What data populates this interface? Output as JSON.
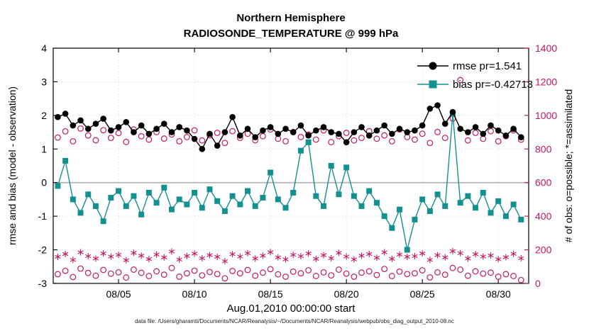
{
  "colors": {
    "background": "#ffffff",
    "frame": "#000000",
    "grid": "#d9d9d9",
    "zero_line": "#b3b3b3",
    "rmse": "#000000",
    "bias": "#149090",
    "obs": "#c41662",
    "caption": "#222222"
  },
  "chart_data": {
    "type": "line",
    "title": "Northern Hemisphere",
    "subtitle": "RADIOSONDE_TEMPERATURE @ 999 hPa",
    "xlabel": "Aug.01,2010 00:00:00 start",
    "ylabel_left": "rmse and bias (model - observation)",
    "ylabel_right": "# of obs: o=possible; *=assimilated",
    "caption": "data file: /Users/gharamti/Documents/NCAR/Reanalysis/~/Documents/NCAR/Reanalysis/webpub/obs_diag_output_2010-08.nc",
    "grid": true,
    "legend_position": "upper-right-inside",
    "ylim_left": [
      -3,
      4
    ],
    "yticks_left": [
      -3,
      -2,
      -1,
      0,
      1,
      2,
      3,
      4
    ],
    "ylim_right": [
      0,
      1400
    ],
    "yticks_right": [
      0,
      200,
      400,
      600,
      800,
      1000,
      1200,
      1400
    ],
    "xlim_days": [
      -0.3,
      31
    ],
    "time_step_days": 0.5,
    "xticks": [
      {
        "day": 4,
        "label": "08/05"
      },
      {
        "day": 9,
        "label": "08/10"
      },
      {
        "day": 14,
        "label": "08/15"
      },
      {
        "day": 19,
        "label": "08/20"
      },
      {
        "day": 24,
        "label": "08/25"
      },
      {
        "day": 29,
        "label": "08/30"
      }
    ],
    "series": [
      {
        "name": "rmse",
        "legend": "rmse pr=1.541",
        "axis": "left",
        "color": "#000000",
        "marker": "filled-circle",
        "line": true,
        "values": [
          1.95,
          2.05,
          1.7,
          1.85,
          1.6,
          1.75,
          1.9,
          1.55,
          1.65,
          1.8,
          1.5,
          1.7,
          1.45,
          1.6,
          1.75,
          1.5,
          1.65,
          1.55,
          1.3,
          1.0,
          1.45,
          1.1,
          1.5,
          1.95,
          1.4,
          1.6,
          1.35,
          1.55,
          1.65,
          1.45,
          1.6,
          1.5,
          1.7,
          1.4,
          1.55,
          1.65,
          1.5,
          1.45,
          1.2,
          1.5,
          1.65,
          1.4,
          1.55,
          1.7,
          1.45,
          1.6,
          1.5,
          1.55,
          1.7,
          2.2,
          2.3,
          1.75,
          2.1,
          1.6,
          1.5,
          1.65,
          1.45,
          1.7,
          1.55,
          1.4,
          1.6,
          1.35
        ]
      },
      {
        "name": "bias",
        "legend": "bias pr=-0.42713",
        "axis": "left",
        "color": "#149090",
        "marker": "filled-square",
        "line": true,
        "values": [
          -0.1,
          0.65,
          -0.5,
          -0.9,
          -0.35,
          -0.7,
          -1.15,
          -0.45,
          -0.25,
          -0.7,
          -0.4,
          -0.95,
          -0.3,
          -0.6,
          -0.15,
          -0.8,
          -0.5,
          -0.65,
          -0.3,
          -0.75,
          -0.2,
          -0.55,
          -0.85,
          -0.4,
          -0.65,
          -0.25,
          -0.7,
          -0.45,
          0.3,
          -0.5,
          -0.75,
          -0.3,
          0.95,
          1.2,
          -0.4,
          -0.7,
          0.5,
          -0.35,
          0.45,
          -0.4,
          -0.7,
          -0.25,
          -0.6,
          -1.0,
          -1.35,
          -0.8,
          -2.0,
          -1.1,
          -0.5,
          -0.85,
          -0.35,
          -0.7,
          2.05,
          -0.6,
          -0.4,
          -0.75,
          -0.3,
          -0.9,
          -0.55,
          -1.0,
          -0.65,
          -1.1
        ]
      },
      {
        "name": "n-possible",
        "axis": "right",
        "color": "#c41662",
        "marker": "open-circle",
        "line": false,
        "values": [
          868,
          905,
          846,
          922,
          881,
          852,
          912,
          866,
          895,
          842,
          916,
          876,
          856,
          901,
          862,
          886,
          846,
          871,
          911,
          851,
          882,
          896,
          836,
          906,
          866,
          891,
          852,
          876,
          916,
          861,
          846,
          901,
          871,
          886,
          856,
          911,
          841,
          876,
          896,
          851,
          866,
          906,
          861,
          881,
          846,
          916,
          871,
          856,
          891,
          836,
          901,
          866,
          981,
          1210,
          851,
          896,
          861,
          906,
          846,
          876,
          911,
          856
        ]
      },
      {
        "name": "n-assimilated",
        "axis": "right",
        "color": "#c41662",
        "marker": "asterisk",
        "line": false,
        "values": [
          158,
          175,
          140,
          185,
          162,
          148,
          178,
          160,
          170,
          138,
          182,
          165,
          145,
          172,
          155,
          190,
          142,
          163,
          177,
          150,
          168,
          158,
          132,
          174,
          160,
          180,
          148,
          165,
          186,
          155,
          143,
          170,
          162,
          178,
          146,
          168,
          150,
          182,
          160,
          143,
          165,
          175,
          153,
          185,
          146,
          172,
          158,
          162,
          178,
          140,
          168,
          155,
          192,
          180,
          148,
          174,
          160,
          166,
          144,
          156,
          176,
          150
        ]
      },
      {
        "name": "n-possible-low",
        "axis": "right",
        "color": "#c41662",
        "marker": "open-circle",
        "line": false,
        "values": [
          55,
          75,
          38,
          88,
          62,
          46,
          80,
          58,
          66,
          35,
          82,
          63,
          44,
          72,
          52,
          92,
          40,
          60,
          76,
          48,
          68,
          56,
          30,
          74,
          60,
          80,
          46,
          64,
          85,
          54,
          40,
          70,
          60,
          78,
          44,
          66,
          48,
          82,
          58,
          40,
          64,
          72,
          50,
          86,
          44,
          70,
          56,
          60,
          78,
          36,
          66,
          52,
          92,
          82,
          46,
          72,
          58,
          64,
          40,
          55,
          44,
          20
        ]
      }
    ]
  }
}
